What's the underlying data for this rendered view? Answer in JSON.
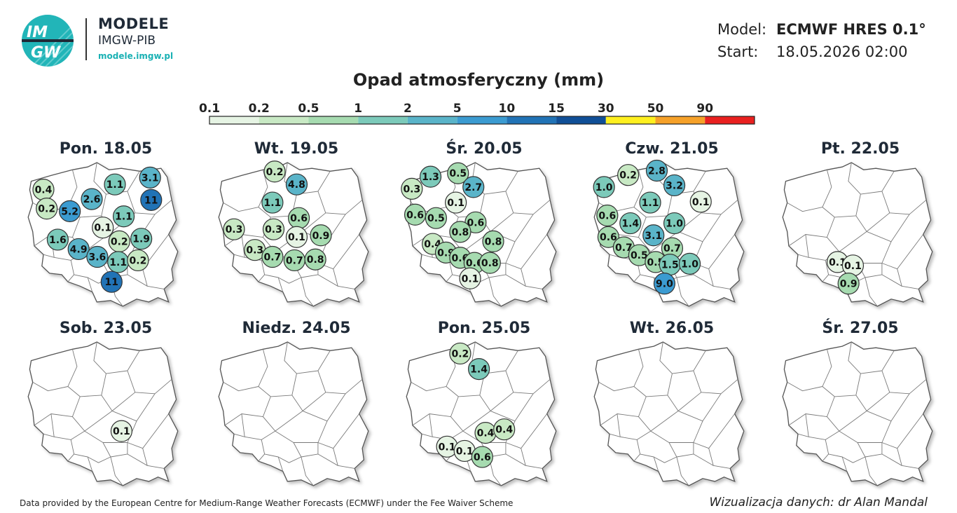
{
  "brand": {
    "logo_text_top": "IM",
    "logo_text_bottom": "GW",
    "title": "MODELE",
    "subtitle": "IMGW-PIB",
    "url": "modele.imgw.pl"
  },
  "meta": {
    "model_label": "Model:",
    "model_value": "ECMWF HRES 0.1°",
    "start_label": "Start:",
    "start_value": "18.05.2026 02:00"
  },
  "legend": {
    "title": "Opad atmosferyczny (mm)",
    "ticks": [
      "0.1",
      "0.2",
      "0.5",
      "1",
      "2",
      "5",
      "10",
      "15",
      "30",
      "50",
      "90"
    ],
    "colors": [
      "#e6f4e4",
      "#c8e9c4",
      "#a6dbb0",
      "#7ccaba",
      "#5ab4c9",
      "#3b9bd1",
      "#2173b6",
      "#104f97",
      "#fff01f",
      "#f6a129",
      "#e9201f"
    ]
  },
  "days": [
    {
      "title": "Pon. 18.05",
      "points": [
        {
          "v": "0.4",
          "x": 0.14,
          "y": 0.33
        },
        {
          "v": "0.2",
          "x": 0.17,
          "y": 0.55
        },
        {
          "v": "5.2",
          "x": 0.38,
          "y": 0.58
        },
        {
          "v": "2.6",
          "x": 0.58,
          "y": 0.44
        },
        {
          "v": "1.1",
          "x": 0.79,
          "y": 0.27
        },
        {
          "v": "3.1",
          "x": 1.11,
          "y": 0.19
        },
        {
          "v": "11",
          "x": 1.12,
          "y": 0.45
        },
        {
          "v": "1.1",
          "x": 0.87,
          "y": 0.64
        },
        {
          "v": "0.1",
          "x": 0.68,
          "y": 0.77
        },
        {
          "v": "0.2",
          "x": 0.83,
          "y": 0.93
        },
        {
          "v": "1.9",
          "x": 1.03,
          "y": 0.9
        },
        {
          "v": "1.6",
          "x": 0.27,
          "y": 0.91
        },
        {
          "v": "4.9",
          "x": 0.46,
          "y": 1.02
        },
        {
          "v": "3.6",
          "x": 0.63,
          "y": 1.11
        },
        {
          "v": "1.1",
          "x": 0.82,
          "y": 1.17
        },
        {
          "v": "0.2",
          "x": 1.0,
          "y": 1.15
        },
        {
          "v": "11",
          "x": 0.76,
          "y": 1.4
        }
      ]
    },
    {
      "title": "Wt. 19.05",
      "points": [
        {
          "v": "0.2",
          "x": 0.51,
          "y": 0.12
        },
        {
          "v": "4.8",
          "x": 0.71,
          "y": 0.27
        },
        {
          "v": "1.1",
          "x": 0.49,
          "y": 0.48
        },
        {
          "v": "0.3",
          "x": 0.14,
          "y": 0.79
        },
        {
          "v": "0.3",
          "x": 0.5,
          "y": 0.79
        },
        {
          "v": "0.6",
          "x": 0.73,
          "y": 0.66
        },
        {
          "v": "0.1",
          "x": 0.71,
          "y": 0.88
        },
        {
          "v": "0.9",
          "x": 0.93,
          "y": 0.86
        },
        {
          "v": "0.3",
          "x": 0.33,
          "y": 1.03
        },
        {
          "v": "0.7",
          "x": 0.49,
          "y": 1.11
        },
        {
          "v": "0.7",
          "x": 0.69,
          "y": 1.15
        },
        {
          "v": "0.8",
          "x": 0.88,
          "y": 1.14
        }
      ]
    },
    {
      "title": "Śr. 20.05",
      "points": [
        {
          "v": "1.3",
          "x": 0.22,
          "y": 0.18
        },
        {
          "v": "0.5",
          "x": 0.47,
          "y": 0.14
        },
        {
          "v": "0.3",
          "x": 0.05,
          "y": 0.32
        },
        {
          "v": "2.7",
          "x": 0.61,
          "y": 0.3
        },
        {
          "v": "0.1",
          "x": 0.45,
          "y": 0.48
        },
        {
          "v": "0.6",
          "x": 0.08,
          "y": 0.62
        },
        {
          "v": "0.5",
          "x": 0.27,
          "y": 0.66
        },
        {
          "v": "0.6",
          "x": 0.63,
          "y": 0.71
        },
        {
          "v": "0.8",
          "x": 0.49,
          "y": 0.82
        },
        {
          "v": "0.8",
          "x": 0.79,
          "y": 0.93
        },
        {
          "v": "0.4",
          "x": 0.24,
          "y": 0.96
        },
        {
          "v": "0.9",
          "x": 0.36,
          "y": 1.06
        },
        {
          "v": "0.6",
          "x": 0.49,
          "y": 1.12
        },
        {
          "v": "0.6",
          "x": 0.62,
          "y": 1.18
        },
        {
          "v": "0.8",
          "x": 0.76,
          "y": 1.18
        },
        {
          "v": "0.1",
          "x": 0.58,
          "y": 1.36
        }
      ]
    },
    {
      "title": "Czw. 21.05",
      "points": [
        {
          "v": "0.2",
          "x": 0.31,
          "y": 0.16
        },
        {
          "v": "2.8",
          "x": 0.57,
          "y": 0.11
        },
        {
          "v": "1.0",
          "x": 0.09,
          "y": 0.3
        },
        {
          "v": "3.2",
          "x": 0.73,
          "y": 0.28
        },
        {
          "v": "0.1",
          "x": 0.97,
          "y": 0.47
        },
        {
          "v": "1.1",
          "x": 0.51,
          "y": 0.48
        },
        {
          "v": "0.6",
          "x": 0.12,
          "y": 0.63
        },
        {
          "v": "1.4",
          "x": 0.33,
          "y": 0.72
        },
        {
          "v": "1.0",
          "x": 0.73,
          "y": 0.72
        },
        {
          "v": "3.1",
          "x": 0.54,
          "y": 0.86
        },
        {
          "v": "0.6",
          "x": 0.13,
          "y": 0.88
        },
        {
          "v": "0.7",
          "x": 0.27,
          "y": 1.0
        },
        {
          "v": "0.7",
          "x": 0.71,
          "y": 1.01
        },
        {
          "v": "0.5",
          "x": 0.41,
          "y": 1.09
        },
        {
          "v": "0.5",
          "x": 0.56,
          "y": 1.17
        },
        {
          "v": "1.5",
          "x": 0.69,
          "y": 1.2
        },
        {
          "v": "1.0",
          "x": 0.87,
          "y": 1.19
        },
        {
          "v": "9.0",
          "x": 0.64,
          "y": 1.42
        }
      ]
    },
    {
      "title": "Pt. 22.05",
      "points": [
        {
          "v": "0.1",
          "x": 0.5,
          "y": 1.17
        },
        {
          "v": "0.1",
          "x": 0.64,
          "y": 1.21
        },
        {
          "v": "0.9",
          "x": 0.6,
          "y": 1.42
        }
      ]
    },
    {
      "title": "Sob. 23.05",
      "points": [
        {
          "v": "0.1",
          "x": 0.85,
          "y": 1.05
        }
      ]
    },
    {
      "title": "Niedz. 24.05",
      "points": []
    },
    {
      "title": "Pon. 25.05",
      "points": [
        {
          "v": "0.2",
          "x": 0.49,
          "y": 0.15
        },
        {
          "v": "1.4",
          "x": 0.66,
          "y": 0.33
        },
        {
          "v": "0.4",
          "x": 0.72,
          "y": 1.07
        },
        {
          "v": "0.4",
          "x": 0.89,
          "y": 1.03
        },
        {
          "v": "0.1",
          "x": 0.37,
          "y": 1.23
        },
        {
          "v": "0.1",
          "x": 0.53,
          "y": 1.28
        },
        {
          "v": "0.6",
          "x": 0.69,
          "y": 1.35
        }
      ]
    },
    {
      "title": "Wt. 26.05",
      "points": []
    },
    {
      "title": "Śr. 27.05",
      "points": []
    }
  ],
  "footer": {
    "left": "Data provided by the European Centre for Medium-Range Weather Forecasts (ECMWF) under the Fee Waiver Scheme",
    "right": "Wizualizacja danych: dr Alan Mandal"
  }
}
